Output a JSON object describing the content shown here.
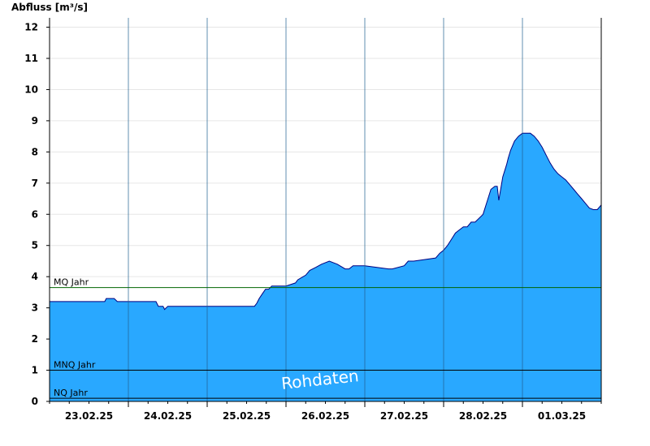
{
  "chart_data": {
    "type": "area",
    "ylabel": "Abfluss [m³/s]",
    "ylim": [
      0,
      12.3
    ],
    "yticks": [
      0,
      1,
      2,
      3,
      4,
      5,
      6,
      7,
      8,
      9,
      10,
      11,
      12
    ],
    "xlim": [
      0,
      7
    ],
    "x_unit": "days since 22.02.25 12:00",
    "day_boundaries": [
      1,
      2,
      3,
      4,
      5,
      6
    ],
    "xtick_labels": [
      "23.02.25",
      "24.02.25",
      "25.02.25",
      "26.02.25",
      "27.02.25",
      "28.02.25",
      "01.03.25"
    ],
    "xtick_label_positions": [
      0.5,
      1.5,
      2.5,
      3.5,
      4.5,
      5.5,
      6.5
    ],
    "grid": true,
    "fill_color": "#29a8ff",
    "line_color": "#000080",
    "series": [
      {
        "x": [
          0.0,
          0.7,
          0.72,
          0.82,
          0.86,
          1.0,
          1.35,
          1.38,
          1.44,
          1.46,
          1.5,
          2.0,
          2.6,
          2.63,
          2.66,
          2.7,
          2.74,
          2.78,
          2.82,
          2.85,
          2.9,
          3.0,
          3.12,
          3.15,
          3.25,
          3.3,
          3.38,
          3.45,
          3.55,
          3.65,
          3.75,
          3.8,
          3.85,
          4.0,
          4.3,
          4.35,
          4.5,
          4.55,
          4.62,
          4.9,
          4.95,
          5.0,
          5.05,
          5.1,
          5.15,
          5.2,
          5.25,
          5.3,
          5.35,
          5.4,
          5.5,
          5.5,
          5.6,
          5.65,
          5.68,
          5.7,
          5.75,
          5.8,
          5.82,
          5.85,
          5.9,
          5.95,
          6.0,
          6.05,
          6.1,
          6.15,
          6.2,
          6.25,
          6.3,
          6.35,
          6.4,
          6.45,
          6.5,
          6.55,
          6.6,
          6.65,
          6.7,
          6.75,
          6.8,
          6.85,
          6.9,
          6.95,
          7.0
        ],
        "y": [
          3.2,
          3.2,
          3.3,
          3.3,
          3.2,
          3.2,
          3.2,
          3.05,
          3.05,
          2.95,
          3.05,
          3.05,
          3.05,
          3.15,
          3.3,
          3.45,
          3.6,
          3.6,
          3.7,
          3.7,
          3.7,
          3.7,
          3.8,
          3.9,
          4.05,
          4.2,
          4.3,
          4.4,
          4.5,
          4.4,
          4.25,
          4.25,
          4.35,
          4.35,
          4.25,
          4.25,
          4.35,
          4.5,
          4.5,
          4.6,
          4.75,
          4.85,
          5.0,
          5.2,
          5.4,
          5.5,
          5.6,
          5.6,
          5.75,
          5.75,
          6.0,
          6.0,
          6.8,
          6.9,
          6.9,
          6.45,
          7.2,
          7.6,
          7.8,
          8.05,
          8.35,
          8.5,
          8.6,
          8.6,
          8.6,
          8.5,
          8.35,
          8.15,
          7.9,
          7.65,
          7.45,
          7.3,
          7.2,
          7.1,
          6.95,
          6.8,
          6.65,
          6.5,
          6.35,
          6.2,
          6.15,
          6.15,
          6.3
        ]
      }
    ],
    "reference_lines": [
      {
        "label": "MQ Jahr",
        "value": 3.65,
        "color": "#006400"
      },
      {
        "label": "MNQ Jahr",
        "value": 1.0,
        "color": "#000000"
      },
      {
        "label": "NQ Jahr",
        "value": 0.1,
        "color": "#000000"
      }
    ],
    "watermark": "Rohdaten"
  }
}
